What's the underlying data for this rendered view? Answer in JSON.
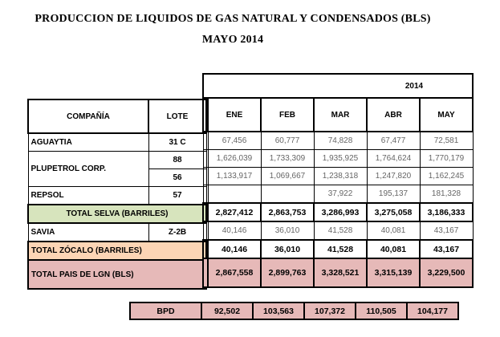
{
  "title_line1": "PRODUCCION DE LIQUIDOS DE GAS NATURAL Y CONDENSADOS (BLS)",
  "title_line2": "MAYO 2014",
  "year": "2014",
  "headers": {
    "company": "COMPAÑÍA",
    "lote": "LOTE"
  },
  "months": [
    "ENE",
    "FEB",
    "MAR",
    "ABR",
    "MAY"
  ],
  "rows": {
    "aguaytia": {
      "company": "AGUAYTIA",
      "lote": "31 C",
      "values": [
        "67,456",
        "60,777",
        "74,828",
        "67,477",
        "72,581"
      ]
    },
    "pluspetrol_88": {
      "company": "PLUPETROL CORP.",
      "lote": "88",
      "values": [
        "1,626,039",
        "1,733,309",
        "1,935,925",
        "1,764,624",
        "1,770,179"
      ]
    },
    "pluspetrol_56": {
      "lote": "56",
      "values": [
        "1,133,917",
        "1,069,667",
        "1,238,318",
        "1,247,820",
        "1,162,245"
      ]
    },
    "repsol": {
      "company": "REPSOL",
      "lote": "57",
      "values": [
        "",
        "",
        "37,922",
        "195,137",
        "181,328"
      ]
    },
    "total_selva": {
      "label": "TOTAL SELVA (BARRILES)",
      "values": [
        "2,827,412",
        "2,863,753",
        "3,286,993",
        "3,275,058",
        "3,186,333"
      ]
    },
    "savia": {
      "company": "SAVIA",
      "lote": "Z-2B",
      "values": [
        "40,146",
        "36,010",
        "41,528",
        "40,081",
        "43,167"
      ]
    },
    "total_zocalo": {
      "label": "TOTAL ZÓCALO (BARRILES)",
      "values": [
        "40,146",
        "36,010",
        "41,528",
        "40,081",
        "43,167"
      ]
    },
    "total_pais": {
      "label": "TOTAL PAIS DE LGN  (BLS)",
      "values": [
        "2,867,558",
        "2,899,763",
        "3,328,521",
        "3,315,139",
        "3,229,500"
      ]
    }
  },
  "bpd": {
    "label": "BPD",
    "values": [
      "92,502",
      "103,563",
      "107,372",
      "110,505",
      "104,177"
    ]
  },
  "colors": {
    "selva": "#d7e4bd",
    "zocalo": "#fcd5b5",
    "pais": "#e6b9b8"
  }
}
